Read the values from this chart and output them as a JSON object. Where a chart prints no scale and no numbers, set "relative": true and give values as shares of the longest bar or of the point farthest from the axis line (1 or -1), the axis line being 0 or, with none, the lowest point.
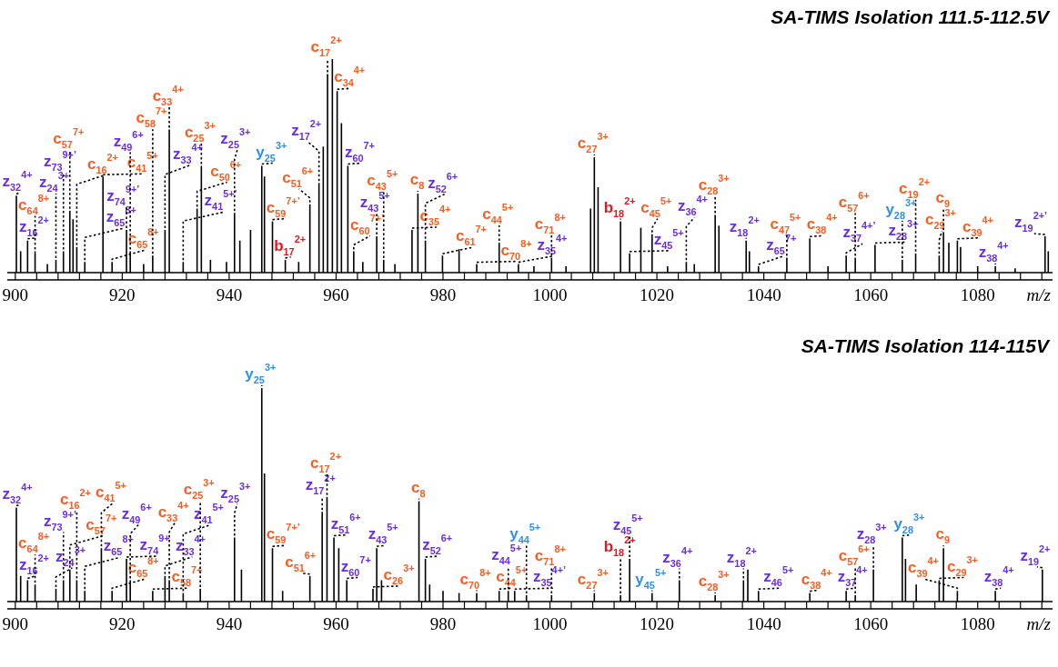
{
  "chart_data": [
    {
      "type": "bar",
      "relative": true,
      "title": "SA-TIMS Isolation 111.5-112.5V",
      "xlabel": "m/z",
      "color": "#000000",
      "xlim": [
        898.5,
        1094
      ],
      "xticks": [
        900,
        {
          "value": 904,
          "label": null
        },
        {
          "value": 908,
          "label": null
        },
        {
          "value": 912,
          "label": null
        },
        {
          "value": 916,
          "label": null
        },
        920,
        {
          "value": 924,
          "label": null
        },
        {
          "value": 928,
          "label": null
        },
        {
          "value": 932,
          "label": null
        },
        {
          "value": 936,
          "label": null
        },
        940,
        {
          "value": 944,
          "label": null
        },
        {
          "value": 948,
          "label": null
        },
        {
          "value": 952,
          "label": null
        },
        {
          "value": 956,
          "label": null
        },
        960,
        {
          "value": 964,
          "label": null
        },
        {
          "value": 968,
          "label": null
        },
        {
          "value": 972,
          "label": null
        },
        {
          "value": 976,
          "label": null
        },
        980,
        {
          "value": 984,
          "label": null
        },
        {
          "value": 988,
          "label": null
        },
        {
          "value": 992,
          "label": null
        },
        {
          "value": 996,
          "label": null
        },
        1000,
        {
          "value": 1004,
          "label": null
        },
        {
          "value": 1008,
          "label": null
        },
        {
          "value": 1012,
          "label": null
        },
        {
          "value": 1016,
          "label": null
        },
        1020,
        {
          "value": 1024,
          "label": null
        },
        {
          "value": 1028,
          "label": null
        },
        {
          "value": 1032,
          "label": null
        },
        {
          "value": 1036,
          "label": null
        },
        1040,
        {
          "value": 1044,
          "label": null
        },
        {
          "value": 1048,
          "label": null
        },
        {
          "value": 1052,
          "label": null
        },
        {
          "value": 1056,
          "label": null
        },
        1060,
        {
          "value": 1064,
          "label": null
        },
        {
          "value": 1068,
          "label": null
        },
        {
          "value": 1072,
          "label": null
        },
        {
          "value": 1076,
          "label": null
        },
        1080,
        {
          "value": 1084,
          "label": null
        },
        {
          "value": 1088,
          "label": null
        },
        {
          "value": 1092,
          "label": null
        }
      ],
      "x": [
        900.2,
        901.0,
        902.3,
        903.7,
        906.0,
        907.6,
        909.0,
        910.2,
        910.8,
        911.5,
        913.0,
        916.4,
        918.1,
        920.8,
        921.5,
        924.0,
        925.7,
        928.0,
        928.8,
        931.4,
        934.0,
        934.8,
        936.5,
        939.5,
        941.0,
        942.0,
        944.0,
        946.1,
        946.6,
        948.1,
        950.5,
        953.0,
        955.1,
        956.8,
        957.6,
        958.4,
        959.3,
        960.2,
        961.0,
        962.2,
        963.3,
        965.0,
        967.6,
        968.9,
        971.0,
        974.2,
        975.3,
        976.7,
        979.9,
        983.0,
        986.3,
        990.5,
        994.1,
        997.0,
        1000.3,
        1003.0,
        1007.6,
        1008.3,
        1009.0,
        1013.2,
        1014.9,
        1017.0,
        1019.1,
        1022.0,
        1025.5,
        1027.0,
        1030.9,
        1031.6,
        1036.7,
        1037.3,
        1039.0,
        1044.3,
        1048.6,
        1052.0,
        1055.4,
        1057.1,
        1060.8,
        1065.9,
        1068.4,
        1072.8,
        1073.6,
        1074.6,
        1076.2,
        1076.8,
        1080.0,
        1083.3,
        1087.0,
        1092.6,
        1093.2
      ],
      "values": [
        0.36,
        0.1,
        0.15,
        0.1,
        0.04,
        0.06,
        0.1,
        0.29,
        0.25,
        0.12,
        0.05,
        0.45,
        0.05,
        0.2,
        0.1,
        0.04,
        0.08,
        0.2,
        0.67,
        0.05,
        0.3,
        0.5,
        0.06,
        0.05,
        0.28,
        0.15,
        0.2,
        0.5,
        0.45,
        0.24,
        0.06,
        0.05,
        0.32,
        0.42,
        0.59,
        0.93,
        1,
        0.85,
        0.7,
        0.5,
        0.1,
        0.05,
        0.17,
        0.06,
        0.04,
        0.2,
        0.37,
        0.15,
        0.08,
        0.11,
        0.04,
        0.14,
        0.04,
        0.03,
        0.07,
        0.03,
        0.3,
        0.54,
        0.4,
        0.24,
        0.09,
        0.21,
        0.18,
        0.03,
        0.05,
        0.04,
        0.27,
        0.22,
        0.15,
        0.1,
        0.03,
        0.07,
        0.16,
        0.03,
        0.08,
        0.07,
        0.13,
        0.06,
        0.09,
        0.08,
        0.19,
        0.14,
        0.15,
        0.12,
        0.03,
        0.03,
        0.02,
        0.17,
        0.1
      ],
      "annotations": [
        {
          "text": "z$_{32}$$^{4+}$",
          "x": 900.2,
          "y": 0.36
        },
        {
          "text": "z$_{16}$$^{2+}$",
          "x": 902.3,
          "y": 0.15
        },
        {
          "text": "c$_{64}$$^{8+}$",
          "x": 903.7,
          "y": 0.1
        },
        {
          "text": "z$_{24}$$^{3+}$",
          "x": 907.6,
          "y": 0.06
        },
        {
          "text": "z$_{73}$$^{9+’}$",
          "x": 909.0,
          "y": 0.1
        },
        {
          "text": "c$_{57}$$^{7+}$",
          "x": 910.2,
          "y": 0.29
        },
        {
          "text": "c$_{16}$$^{2+}$",
          "x": 911.5,
          "y": 0.12
        },
        {
          "text": "z$_{65}$$^{8+}$",
          "x": 913.0,
          "y": 0.05
        },
        {
          "text": "c$_{41}$$^{5+}$",
          "x": 916.4,
          "y": 0.45
        },
        {
          "text": "c$_{65}$$^{8+}$",
          "x": 918.1,
          "y": 0.05
        },
        {
          "text": "z$_{74}$$^{9+’}$",
          "x": 920.8,
          "y": 0.2
        },
        {
          "text": "z$_{49}$$^{6+}$",
          "x": 921.5,
          "y": 0.1
        },
        {
          "text": "c$_{58}$$^{7+}$",
          "x": 925.7,
          "y": 0.08
        },
        {
          "text": "z$_{33}$$^{4+}$",
          "x": 928.0,
          "y": 0.2
        },
        {
          "text": "c$_{33}$$^{4+}$",
          "x": 928.8,
          "y": 0.67
        },
        {
          "text": "z$_{41}$$^{5+’}$",
          "x": 931.4,
          "y": 0.05
        },
        {
          "text": "c$_{50}$$^{6+}$",
          "x": 934.0,
          "y": 0.3
        },
        {
          "text": "c$_{25}$$^{3+}$",
          "x": 934.8,
          "y": 0.5
        },
        {
          "text": "z$_{25}$$^{3+}$",
          "x": 941.0,
          "y": 0.28
        },
        {
          "text": "y$_{25}$$^{3+}$",
          "x": 946.1,
          "y": 0.5
        },
        {
          "text": "c$_{59}$$^{7+’}$",
          "x": 948.1,
          "y": 0.24
        },
        {
          "text": "b$_{17}$$^{2+}$",
          "x": 950.5,
          "y": 0.06
        },
        {
          "text": "c$_{51}$$^{6+}$",
          "x": 955.1,
          "y": 0.32
        },
        {
          "text": "z$_{17}$$^{2+}$",
          "x": 956.8,
          "y": 0.42
        },
        {
          "text": "c$_{17}$$^{2+}$",
          "x": 958.4,
          "y": 0.93
        },
        {
          "text": "c$_{34}$$^{4+}$",
          "x": 960.2,
          "y": 0.85
        },
        {
          "text": "z$_{60}$$^{7+}$",
          "x": 962.2,
          "y": 0.5
        },
        {
          "text": "c$_{60}$$^{7+’}$",
          "x": 963.3,
          "y": 0.1
        },
        {
          "text": "z$_{43}$$^{5+}$",
          "x": 967.6,
          "y": 0.17
        },
        {
          "text": "c$_{43}$$^{5+}$",
          "x": 968.9,
          "y": 0.06
        },
        {
          "text": "c$_{35}$$^{4+}$",
          "x": 974.2,
          "y": 0.2
        },
        {
          "text": "c$_{8}$",
          "x": 975.3,
          "y": 0.37
        },
        {
          "text": "z$_{52}$$^{6+}$",
          "x": 976.7,
          "y": 0.15
        },
        {
          "text": "c$_{61}$$^{7+}$",
          "x": 979.9,
          "y": 0.08
        },
        {
          "text": "c$_{70}$$^{8+}$",
          "x": 986.3,
          "y": 0.04
        },
        {
          "text": "c$_{44}$$^{5+}$",
          "x": 990.5,
          "y": 0.14
        },
        {
          "text": "z$_{35}$$^{4+}$",
          "x": 994.1,
          "y": 0.04
        },
        {
          "text": "c$_{71}$$^{8+}$",
          "x": 1000.3,
          "y": 0.07
        },
        {
          "text": "c$_{27}$$^{3+}$",
          "x": 1008.3,
          "y": 0.54
        },
        {
          "text": "b$_{18}$$^{2+}$",
          "x": 1013.2,
          "y": 0.24
        },
        {
          "text": "z$_{45}$$^{5+}$",
          "x": 1014.9,
          "y": 0.09
        },
        {
          "text": "c$_{45}$$^{5+}$",
          "x": 1019.1,
          "y": 0.18
        },
        {
          "text": "z$_{36}$$^{4+}$",
          "x": 1025.5,
          "y": 0.05
        },
        {
          "text": "c$_{28}$$^{3+}$",
          "x": 1030.9,
          "y": 0.27
        },
        {
          "text": "z$_{18}$$^{2+}$",
          "x": 1036.7,
          "y": 0.15
        },
        {
          "text": "z$_{65}$$^{7+}$",
          "x": 1039.0,
          "y": 0.03
        },
        {
          "text": "c$_{47}$$^{5+}$",
          "x": 1044.3,
          "y": 0.07
        },
        {
          "text": "c$_{38}$$^{4+}$",
          "x": 1048.6,
          "y": 0.16
        },
        {
          "text": "z$_{37}$$^{4+’}$",
          "x": 1055.4,
          "y": 0.08
        },
        {
          "text": "c$_{57}$$^{6+}$",
          "x": 1057.1,
          "y": 0.07
        },
        {
          "text": "z$_{28}$$^{3+}$",
          "x": 1060.8,
          "y": 0.13
        },
        {
          "text": "y$_{28}$$^{3+}$",
          "x": 1065.9,
          "y": 0.06
        },
        {
          "text": "c$_{19}$$^{2+}$",
          "x": 1068.4,
          "y": 0.09
        },
        {
          "text": "c$_{29}$$^{3+}$",
          "x": 1072.8,
          "y": 0.08
        },
        {
          "text": "c$_{9}$",
          "x": 1073.6,
          "y": 0.19
        },
        {
          "text": "c$_{39}$$^{4+}$",
          "x": 1076.2,
          "y": 0.15
        },
        {
          "text": "z$_{38}$$^{4+}$",
          "x": 1083.3,
          "y": 0.03
        },
        {
          "text": "z$_{19}$$^{2+’}$",
          "x": 1092.6,
          "y": 0.17
        }
      ]
    },
    {
      "type": "bar",
      "relative": true,
      "title": "SA-TIMS Isolation 114-115V",
      "xlabel": "m/z",
      "color": "#000000",
      "xlim": [
        898.5,
        1094
      ],
      "xticks": [
        900,
        {
          "value": 904,
          "label": null
        },
        {
          "value": 908,
          "label": null
        },
        {
          "value": 912,
          "label": null
        },
        {
          "value": 916,
          "label": null
        },
        920,
        {
          "value": 924,
          "label": null
        },
        {
          "value": 928,
          "label": null
        },
        {
          "value": 932,
          "label": null
        },
        {
          "value": 936,
          "label": null
        },
        940,
        {
          "value": 944,
          "label": null
        },
        {
          "value": 948,
          "label": null
        },
        {
          "value": 952,
          "label": null
        },
        {
          "value": 956,
          "label": null
        },
        960,
        {
          "value": 964,
          "label": null
        },
        {
          "value": 968,
          "label": null
        },
        {
          "value": 972,
          "label": null
        },
        {
          "value": 976,
          "label": null
        },
        980,
        {
          "value": 984,
          "label": null
        },
        {
          "value": 988,
          "label": null
        },
        {
          "value": 992,
          "label": null
        },
        {
          "value": 996,
          "label": null
        },
        1000,
        {
          "value": 1004,
          "label": null
        },
        {
          "value": 1008,
          "label": null
        },
        {
          "value": 1012,
          "label": null
        },
        {
          "value": 1016,
          "label": null
        },
        1020,
        {
          "value": 1024,
          "label": null
        },
        {
          "value": 1028,
          "label": null
        },
        {
          "value": 1032,
          "label": null
        },
        {
          "value": 1036,
          "label": null
        },
        1040,
        {
          "value": 1044,
          "label": null
        },
        {
          "value": 1048,
          "label": null
        },
        {
          "value": 1052,
          "label": null
        },
        {
          "value": 1056,
          "label": null
        },
        1060,
        {
          "value": 1064,
          "label": null
        },
        {
          "value": 1068,
          "label": null
        },
        {
          "value": 1072,
          "label": null
        },
        {
          "value": 1076,
          "label": null
        },
        1080,
        {
          "value": 1084,
          "label": null
        },
        {
          "value": 1088,
          "label": null
        },
        {
          "value": 1092,
          "label": null
        }
      ],
      "x": [
        900.2,
        901.0,
        902.3,
        903.7,
        907.6,
        909.0,
        910.2,
        911.5,
        913.0,
        916.1,
        918.1,
        920.8,
        921.5,
        925.7,
        928.0,
        928.8,
        931.4,
        934.6,
        941.0,
        942.3,
        946.1,
        946.6,
        948.1,
        950.0,
        955.1,
        957.4,
        958.3,
        959.6,
        960.5,
        962.0,
        966.9,
        967.6,
        968.5,
        975.5,
        976.7,
        977.5,
        980.0,
        983.0,
        986.3,
        990.5,
        992.2,
        993.4,
        995.6,
        1000.3,
        1008.3,
        1013.2,
        1014.9,
        1019.1,
        1024.2,
        1030.9,
        1036.2,
        1037.0,
        1039.0,
        1048.6,
        1055.4,
        1057.1,
        1060.5,
        1065.9,
        1066.5,
        1068.5,
        1072.8,
        1073.6,
        1076.2,
        1083.3,
        1092.1
      ],
      "values": [
        0.44,
        0.12,
        0.1,
        0.08,
        0.06,
        0.1,
        0.15,
        0.1,
        0.05,
        0.25,
        0.05,
        0.2,
        0.1,
        0.05,
        0.12,
        0.1,
        0.04,
        0.06,
        0.3,
        0.15,
        1,
        0.6,
        0.25,
        0.05,
        0.12,
        0.42,
        0.49,
        0.3,
        0.25,
        0.1,
        0.06,
        0.25,
        0.1,
        0.47,
        0.2,
        0.08,
        0.05,
        0.04,
        0.04,
        0.05,
        0.05,
        0.05,
        0.03,
        0.03,
        0.04,
        0.03,
        0.2,
        0.04,
        0.1,
        0.03,
        0.1,
        0.15,
        0.05,
        0.04,
        0.05,
        0.03,
        0.15,
        0.3,
        0.2,
        0.08,
        0.1,
        0.25,
        0.05,
        0.05,
        0.15
      ],
      "annotations": [
        {
          "text": "z$_{32}$$^{4+}$",
          "x": 900.2,
          "y": 0.44
        },
        {
          "text": "z$_{16}$$^{2+}$",
          "x": 902.3,
          "y": 0.1
        },
        {
          "text": "c$_{64}$$^{8+}$",
          "x": 903.7,
          "y": 0.08
        },
        {
          "text": "z$_{24}$$^{3+}$",
          "x": 907.6,
          "y": 0.06
        },
        {
          "text": "z$_{73}$$^{9+’}$",
          "x": 909.0,
          "y": 0.1
        },
        {
          "text": "c$_{57}$$^{7+}$",
          "x": 910.2,
          "y": 0.15
        },
        {
          "text": "c$_{16}$$^{2+}$",
          "x": 911.5,
          "y": 0.1
        },
        {
          "text": "z$_{65}$$^{8+}$",
          "x": 913.0,
          "y": 0.05
        },
        {
          "text": "c$_{41}$$^{5+}$",
          "x": 916.1,
          "y": 0.25
        },
        {
          "text": "c$_{65}$$^{8+}$",
          "x": 918.1,
          "y": 0.05
        },
        {
          "text": "z$_{74}$$^{9+}$",
          "x": 920.8,
          "y": 0.2
        },
        {
          "text": "z$_{49}$$^{6+}$",
          "x": 921.5,
          "y": 0.1
        },
        {
          "text": "c$_{58}$$^{7+}$",
          "x": 925.7,
          "y": 0.05
        },
        {
          "text": "z$_{33}$$^{4+}$",
          "x": 928.0,
          "y": 0.12
        },
        {
          "text": "c$_{33}$$^{4+}$",
          "x": 928.8,
          "y": 0.1
        },
        {
          "text": "z$_{41}$$^{5+}$",
          "x": 931.4,
          "y": 0.04
        },
        {
          "text": "c$_{25}$$^{3+}$",
          "x": 934.6,
          "y": 0.06
        },
        {
          "text": "z$_{25}$$^{3+}$",
          "x": 941.0,
          "y": 0.3
        },
        {
          "text": "y$_{25}$$^{3+}$",
          "x": 946.1,
          "y": 1
        },
        {
          "text": "c$_{59}$$^{7+’}$",
          "x": 948.1,
          "y": 0.25
        },
        {
          "text": "c$_{51}$$^{6+}$",
          "x": 955.1,
          "y": 0.12
        },
        {
          "text": "z$_{17}$$^{2+}$",
          "x": 957.4,
          "y": 0.42
        },
        {
          "text": "c$_{17}$$^{2+}$",
          "x": 958.3,
          "y": 0.49
        },
        {
          "text": "z$_{51}$$^{6+}$",
          "x": 959.6,
          "y": 0.3
        },
        {
          "text": "z$_{60}$$^{7+}$",
          "x": 962.0,
          "y": 0.1
        },
        {
          "text": "c$_{26}$$^{3+}$",
          "x": 966.9,
          "y": 0.06
        },
        {
          "text": "z$_{43}$$^{5+}$",
          "x": 967.6,
          "y": 0.25
        },
        {
          "text": "c$_{8}$",
          "x": 975.5,
          "y": 0.47
        },
        {
          "text": "z$_{52}$$^{6+}$",
          "x": 976.7,
          "y": 0.2
        },
        {
          "text": "c$_{70}$$^{8+}$",
          "x": 986.3,
          "y": 0.04
        },
        {
          "text": "c$_{44}$$^{5+}$",
          "x": 990.5,
          "y": 0.05
        },
        {
          "text": "z$_{44}$$^{5+}$",
          "x": 992.2,
          "y": 0.05
        },
        {
          "text": "z$_{35}$$^{4+’}$",
          "x": 993.4,
          "y": 0.05
        },
        {
          "text": "y$_{44}$$^{5+}$",
          "x": 995.6,
          "y": 0.03
        },
        {
          "text": "c$_{71}$$^{8+}$",
          "x": 1000.3,
          "y": 0.03
        },
        {
          "text": "c$_{27}$$^{3+}$",
          "x": 1008.3,
          "y": 0.04
        },
        {
          "text": "b$_{18}$$^{2+}$",
          "x": 1013.2,
          "y": 0.03
        },
        {
          "text": "z$_{45}$$^{5+}$",
          "x": 1014.9,
          "y": 0.2
        },
        {
          "text": "y$_{45}$$^{5+}$",
          "x": 1019.1,
          "y": 0.04
        },
        {
          "text": "z$_{36}$$^{4+}$",
          "x": 1024.2,
          "y": 0.1
        },
        {
          "text": "c$_{28}$$^{3+}$",
          "x": 1030.9,
          "y": 0.03
        },
        {
          "text": "z$_{18}$$^{2+}$",
          "x": 1036.2,
          "y": 0.1
        },
        {
          "text": "z$_{46}$$^{5+}$",
          "x": 1039.0,
          "y": 0.05
        },
        {
          "text": "c$_{38}$$^{4+}$",
          "x": 1048.6,
          "y": 0.04
        },
        {
          "text": "z$_{37}$$^{4+}$",
          "x": 1055.4,
          "y": 0.05
        },
        {
          "text": "c$_{57}$$^{6+}$",
          "x": 1057.1,
          "y": 0.03
        },
        {
          "text": "z$_{28}$$^{3+}$",
          "x": 1060.5,
          "y": 0.15
        },
        {
          "text": "y$_{28}$$^{3+}$",
          "x": 1065.9,
          "y": 0.3
        },
        {
          "text": "c$_{29}$$^{3+}$",
          "x": 1072.8,
          "y": 0.1
        },
        {
          "text": "c$_{9}$",
          "x": 1073.6,
          "y": 0.25
        },
        {
          "text": "c$_{39}$$^{4+}$",
          "x": 1076.2,
          "y": 0.05
        },
        {
          "text": "z$_{38}$$^{4+}$",
          "x": 1083.3,
          "y": 0.05
        },
        {
          "text": "z$_{19}$$^{2+}$",
          "x": 1092.1,
          "y": 0.15
        }
      ]
    }
  ]
}
